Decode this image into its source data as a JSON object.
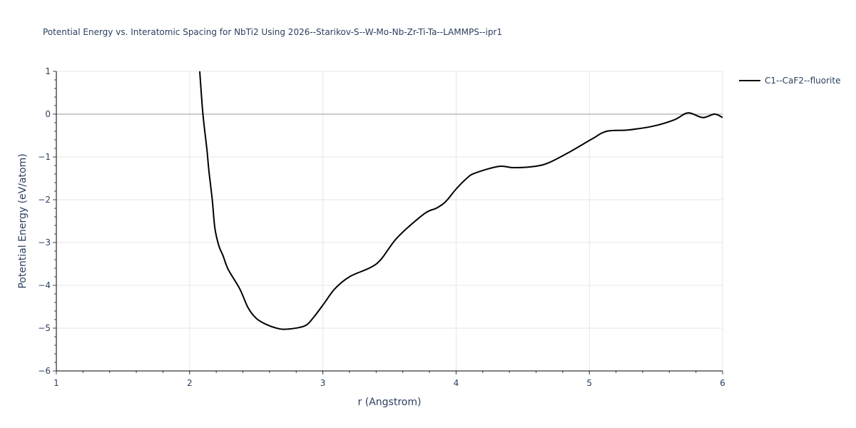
{
  "title": "Potential Energy vs. Interatomic Spacing for NbTi2 Using 2026--Starikov-S--W-Mo-Nb-Zr-Ti-Ta--LAMMPS--ipr1",
  "legend": {
    "items": [
      {
        "label": "C1--CaF2--fluorite",
        "color": "#000000"
      }
    ]
  },
  "axes": {
    "x": {
      "label": "r (Angstrom)",
      "ticks": [
        "1",
        "2",
        "3",
        "4",
        "5",
        "6"
      ]
    },
    "y": {
      "label": "Potential Energy (eV/atom)",
      "ticks": [
        "1",
        "0",
        "−1",
        "−2",
        "−3",
        "−4",
        "−5",
        "−6"
      ]
    }
  },
  "chart_data": {
    "type": "line",
    "title": "Potential Energy vs. Interatomic Spacing for NbTi2 Using 2026--Starikov-S--W-Mo-Nb-Zr-Ti-Ta--LAMMPS--ipr1",
    "xlabel": "r (Angstrom)",
    "ylabel": "Potential Energy (eV/atom)",
    "xlim": [
      1,
      6
    ],
    "ylim": [
      -6,
      1
    ],
    "grid": true,
    "legend_position": "top-right outside",
    "series": [
      {
        "name": "C1--CaF2--fluorite",
        "color": "#000000",
        "x": [
          2.076,
          2.1,
          2.13,
          2.145,
          2.17,
          2.19,
          2.22,
          2.25,
          2.29,
          2.376,
          2.44,
          2.5,
          2.58,
          2.68,
          2.745,
          2.83,
          2.88,
          2.93,
          3.01,
          3.09,
          3.2,
          3.36,
          3.44,
          3.56,
          3.76,
          3.85,
          3.92,
          4.0,
          4.08,
          4.14,
          4.32,
          4.43,
          4.59,
          4.7,
          4.86,
          5.02,
          5.13,
          5.29,
          5.48,
          5.64,
          5.74,
          5.85,
          5.94,
          6.0
        ],
        "y": [
          1.0,
          0.0,
          -0.83,
          -1.33,
          -2.0,
          -2.67,
          -3.08,
          -3.3,
          -3.63,
          -4.08,
          -4.53,
          -4.77,
          -4.92,
          -5.02,
          -5.02,
          -4.98,
          -4.92,
          -4.75,
          -4.42,
          -4.08,
          -3.8,
          -3.58,
          -3.38,
          -2.88,
          -2.33,
          -2.2,
          -2.05,
          -1.75,
          -1.5,
          -1.38,
          -1.22,
          -1.25,
          -1.22,
          -1.13,
          -0.87,
          -0.58,
          -0.4,
          -0.37,
          -0.28,
          -0.13,
          0.03,
          -0.08,
          0.0,
          -0.08
        ]
      }
    ]
  }
}
